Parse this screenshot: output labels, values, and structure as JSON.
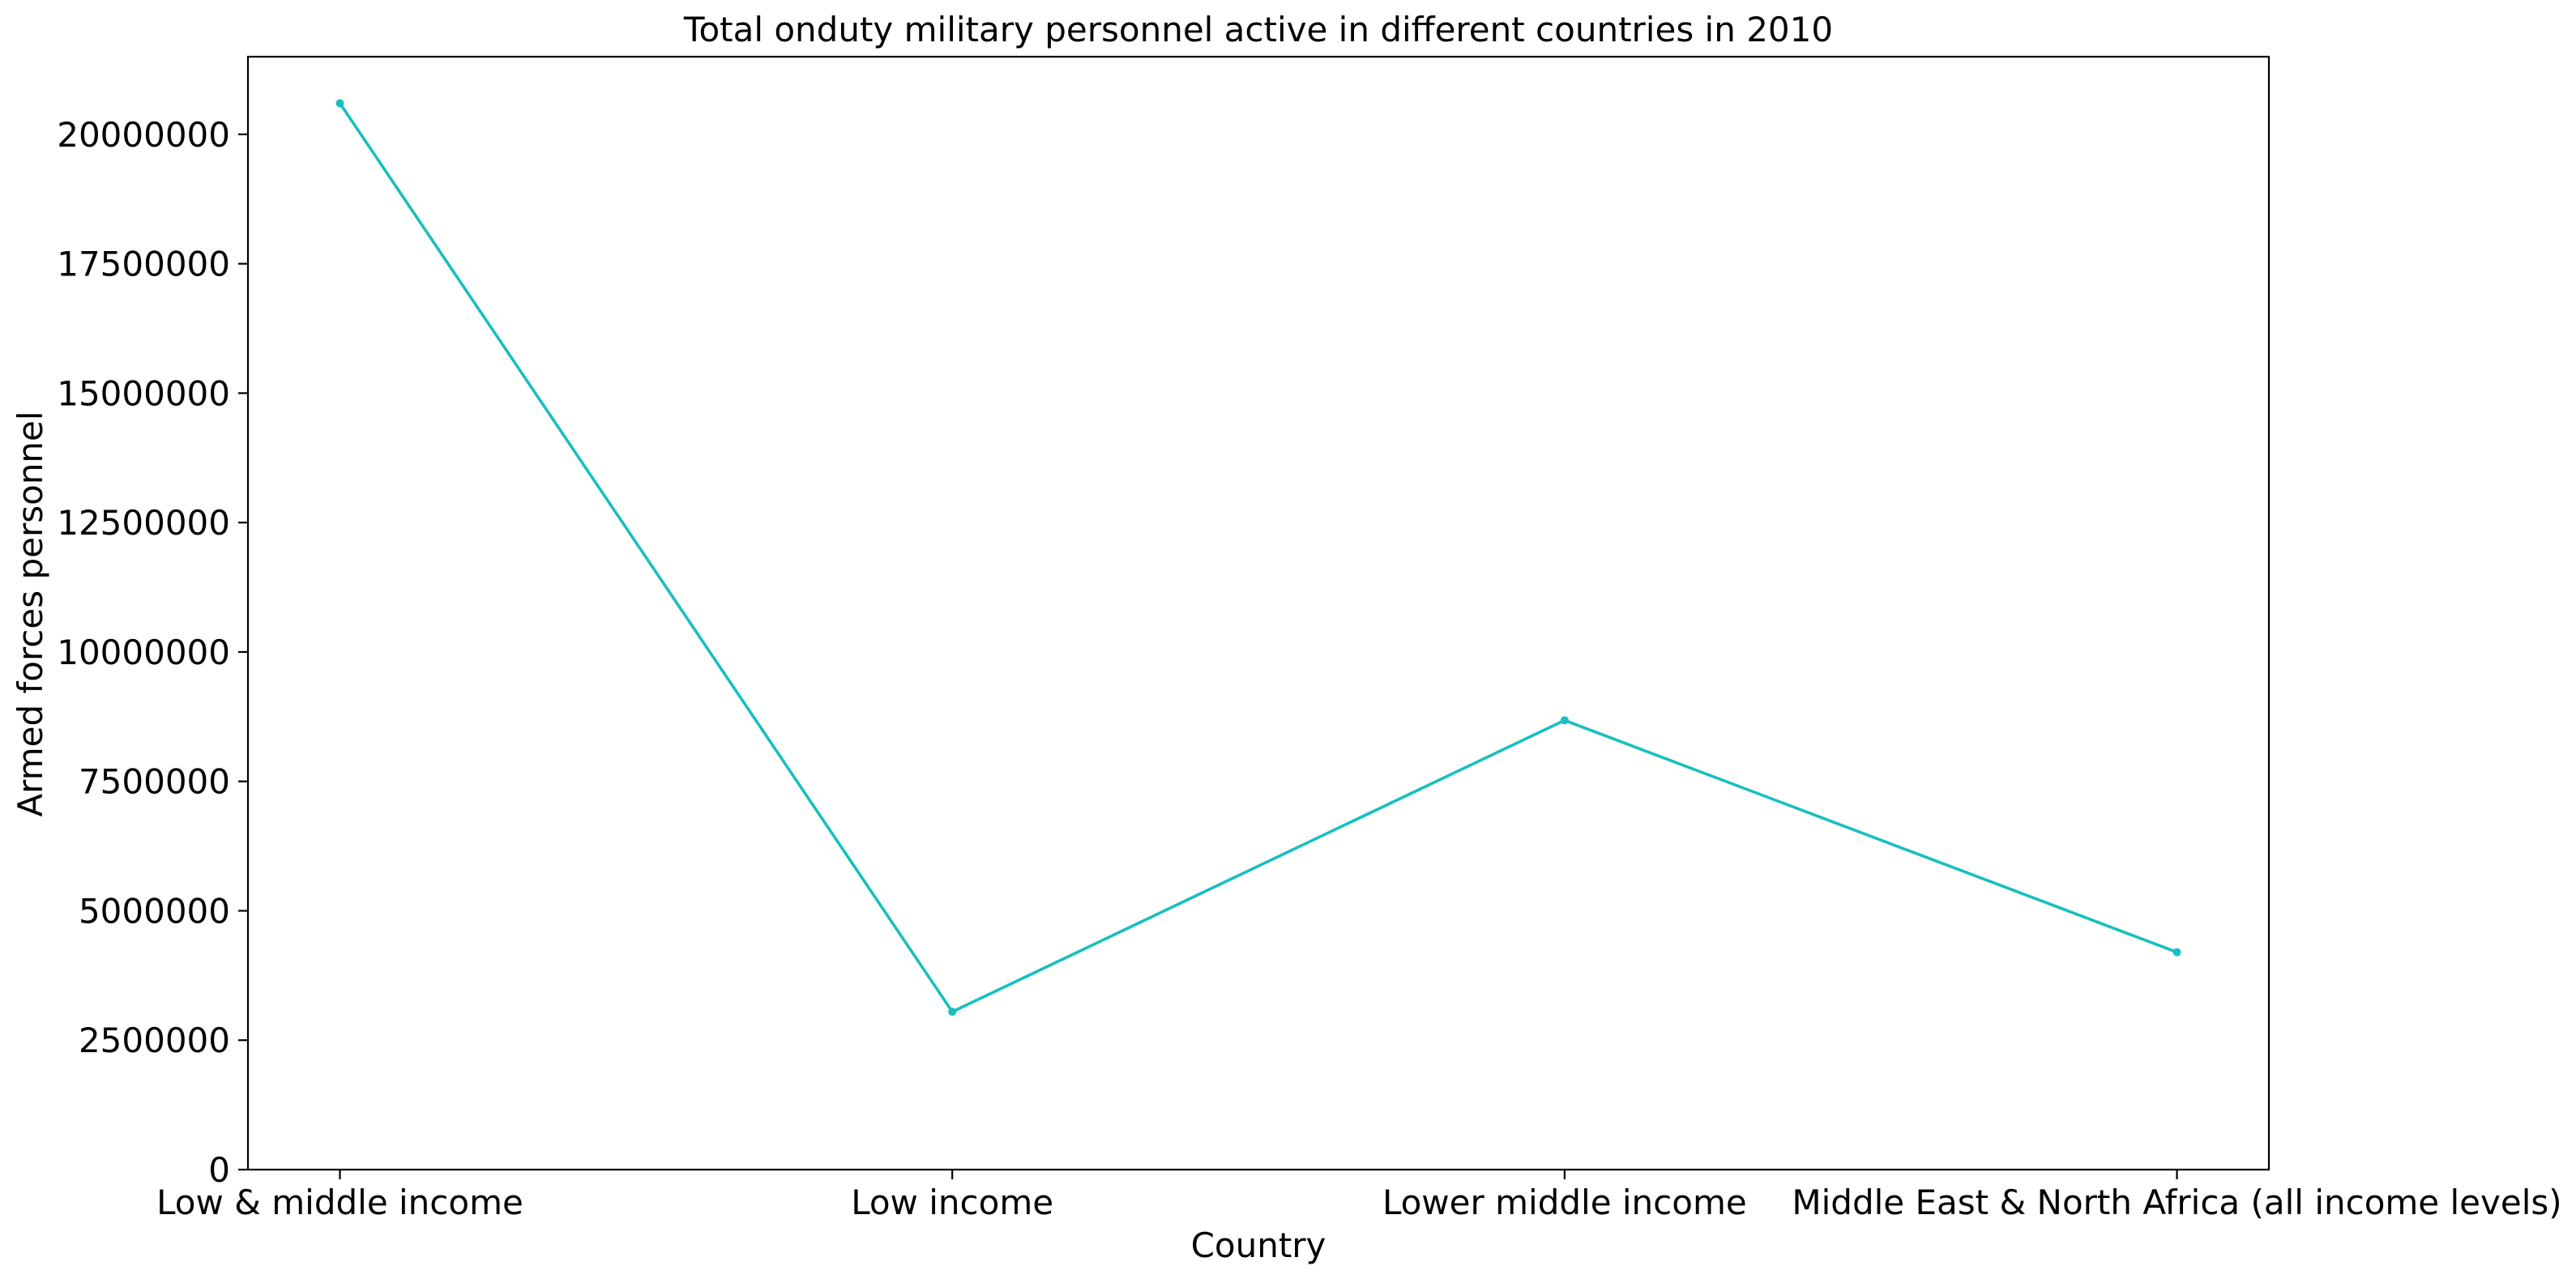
{
  "chart_data": {
    "type": "line",
    "title": "Total onduty military personnel active in different countries in 2010",
    "xlabel": "Country",
    "ylabel": "Armed forces personnel",
    "categories": [
      "Low & middle income",
      "Low income",
      "Lower middle income",
      "Middle East & North Africa (all income levels)"
    ],
    "series": [
      {
        "values": [
          20600000,
          3050000,
          8680000,
          4200000
        ],
        "color": "#17bfbf"
      }
    ],
    "ylim": [
      0,
      21500000
    ],
    "yticks": [
      0,
      2500000,
      5000000,
      7500000,
      10000000,
      12500000,
      15000000,
      17500000,
      20000000
    ],
    "ytick_labels": [
      "0",
      "2500000",
      "5000000",
      "7500000",
      "10000000",
      "12500000",
      "15000000",
      "17500000",
      "20000000"
    ],
    "grid": false,
    "legend": "none"
  }
}
